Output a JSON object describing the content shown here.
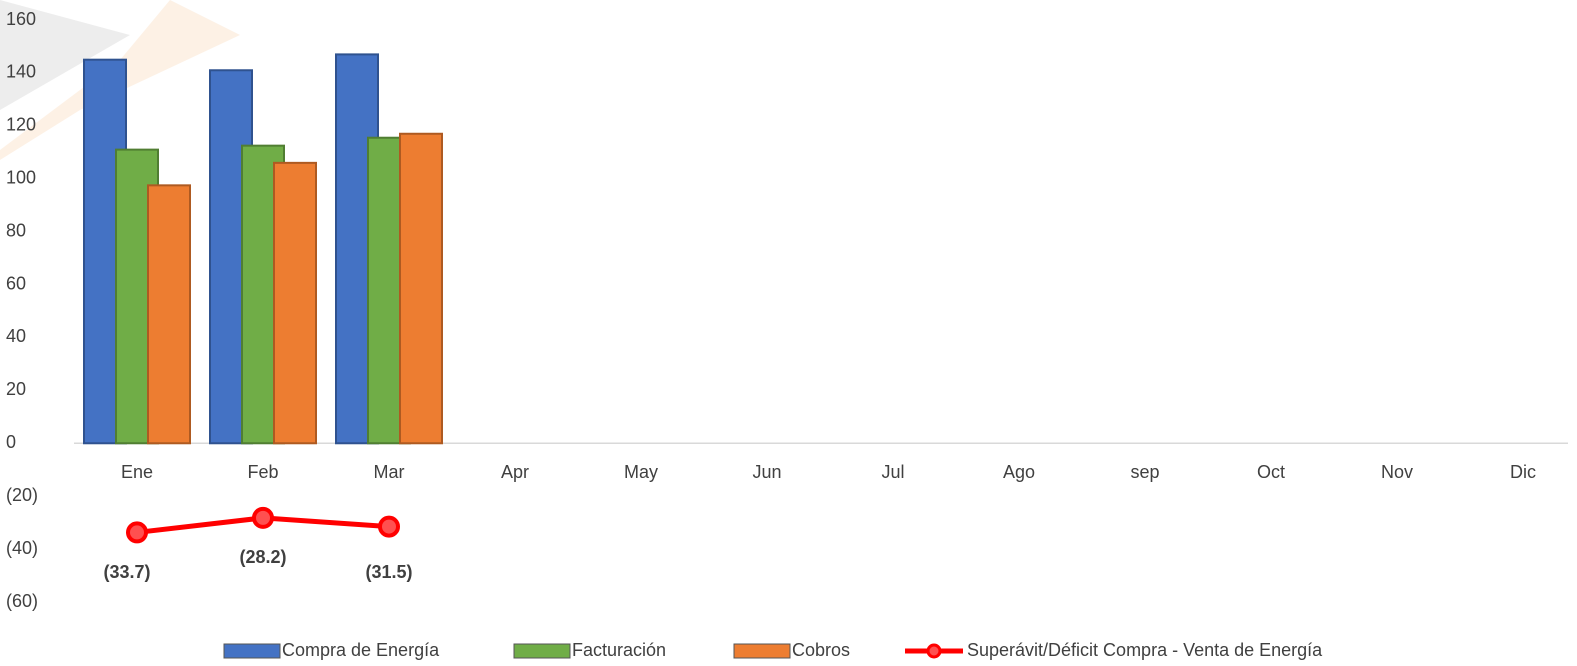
{
  "chart_data": {
    "type": "bar",
    "categories": [
      "Ene",
      "Feb",
      "Mar",
      "Apr",
      "May",
      "Jun",
      "Jul",
      "Ago",
      "sep",
      "Oct",
      "Nov",
      "Dic"
    ],
    "series": [
      {
        "name": "Compra de Energía",
        "color": "#4472c4",
        "type": "bar",
        "values": [
          145,
          141,
          147,
          null,
          null,
          null,
          null,
          null,
          null,
          null,
          null,
          null
        ]
      },
      {
        "name": "Facturación",
        "color": "#70ad47",
        "type": "bar",
        "values": [
          111,
          112.5,
          115.5,
          null,
          null,
          null,
          null,
          null,
          null,
          null,
          null,
          null
        ]
      },
      {
        "name": "Cobros",
        "color": "#ed7d31",
        "type": "bar",
        "values": [
          97.5,
          106,
          117,
          null,
          null,
          null,
          null,
          null,
          null,
          null,
          null,
          null
        ]
      },
      {
        "name": "Superávit/Déficit Compra - Venta de Energía",
        "color": "#ff0000",
        "type": "line",
        "values": [
          -33.7,
          -28.2,
          -31.5,
          null,
          null,
          null,
          null,
          null,
          null,
          null,
          null,
          null
        ],
        "value_labels": [
          "(33.7)",
          "(28.2)",
          "(31.5)",
          null,
          null,
          null,
          null,
          null,
          null,
          null,
          null,
          null
        ]
      }
    ],
    "ylim": [
      -60,
      160
    ],
    "yticks": [
      {
        "value": -60,
        "label": "(60)"
      },
      {
        "value": -40,
        "label": "(40)"
      },
      {
        "value": -20,
        "label": "(20)"
      },
      0,
      20,
      40,
      60,
      80,
      100,
      120,
      140,
      160
    ],
    "legend": "bottom"
  }
}
